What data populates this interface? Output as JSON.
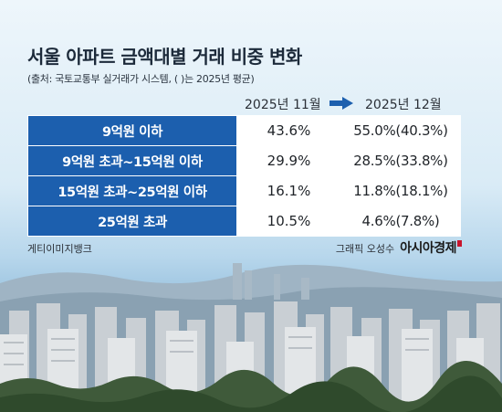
{
  "title": "서울 아파트 금액대별 거래 비중 변화",
  "source": "(출처: 국토교통부 실거래가 시스템, ( )는 2025년 평균)",
  "columns": {
    "nov": "2025년 11월",
    "dec": "2025년 12월",
    "arrow_icon": "arrow-right-icon"
  },
  "rows": [
    {
      "label": "9억원 이하",
      "nov": "43.6%",
      "dec": "55.0%(40.3%)"
    },
    {
      "label": "9억원 초과~15억원 이하",
      "nov": "29.9%",
      "dec": "28.5%(33.8%)"
    },
    {
      "label": "15억원 초과~25억원 이하",
      "nov": "16.1%",
      "dec": "11.8%(18.1%)"
    },
    {
      "label": "25억원 초과",
      "nov": "10.5%",
      "dec": "4.6%(7.8%)"
    }
  ],
  "credits": {
    "photo": "게티이미지뱅크",
    "byline": "그래픽 오성수",
    "brand": "아시아경제"
  },
  "colors": {
    "label_bg": "#1c5fae",
    "arrow": "#1c5fae",
    "brand_mark": "#c8142c"
  }
}
